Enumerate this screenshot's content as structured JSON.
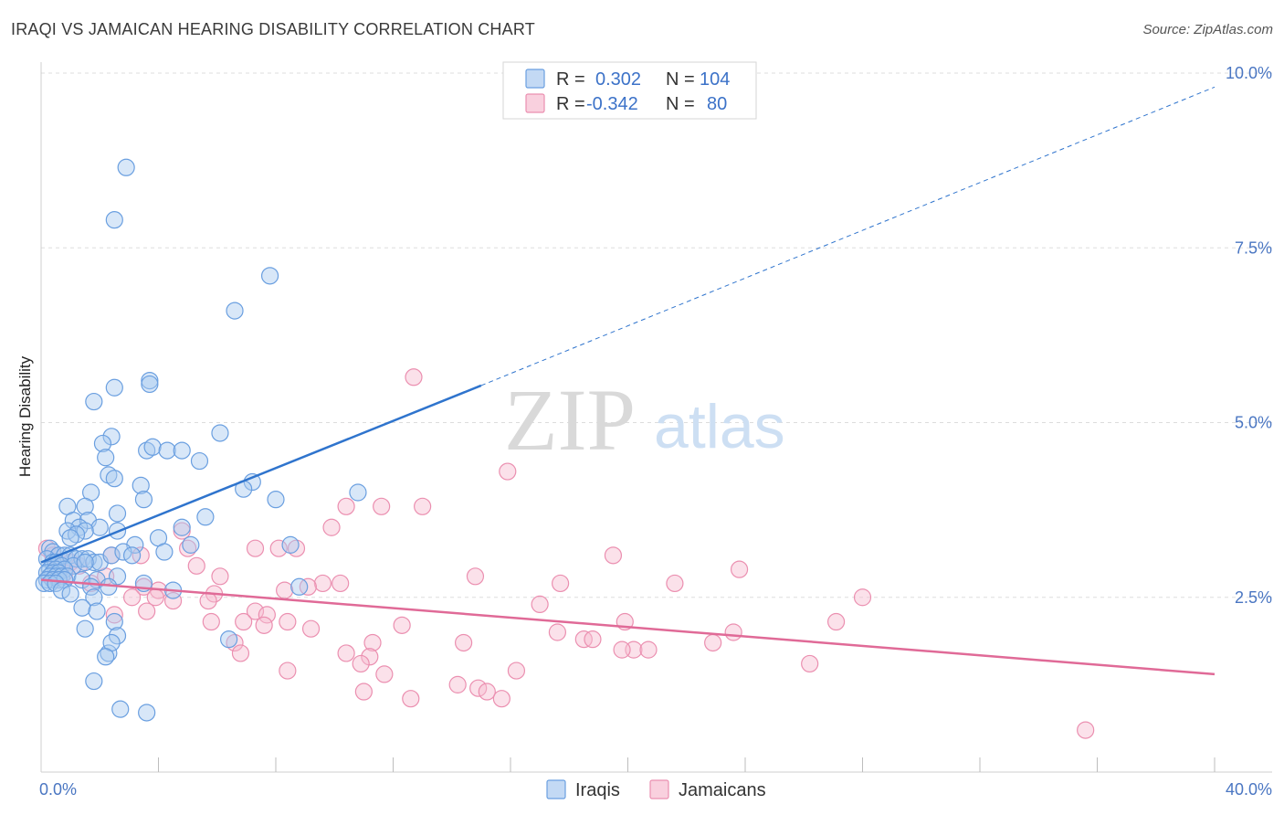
{
  "header": {
    "title": "IRAQI VS JAMAICAN HEARING DISABILITY CORRELATION CHART",
    "source": "Source: ZipAtlas.com"
  },
  "watermark": {
    "zip": "ZIP",
    "atlas": "atlas"
  },
  "legend": {
    "r_label": "R =",
    "n_label": "N =",
    "rows": [
      {
        "r": "0.302",
        "n": "104"
      },
      {
        "r": "-0.342",
        "n": "80"
      }
    ]
  },
  "bottom_legend": [
    "Iraqis",
    "Jamaicans"
  ],
  "colors": {
    "iraqis_fill": "#a9c9f0",
    "iraqis_stroke": "#6a9fe0",
    "iraqis_line": "#2f74cd",
    "jamaicans_fill": "#f7bcd0",
    "jamaicans_stroke": "#eb8fb0",
    "jamaicans_line": "#e06a97",
    "tick_text": "#4a76c2",
    "grid": "#dddddd"
  },
  "chart_data": {
    "type": "scatter",
    "title": "IRAQI VS JAMAICAN HEARING DISABILITY CORRELATION CHART",
    "xlabel": "",
    "ylabel": "Hearing Disability",
    "xlim": [
      0,
      40
    ],
    "ylim": [
      0,
      10
    ],
    "x_tick_labels": [
      "0.0%",
      "40.0%"
    ],
    "y_ticks": [
      2.5,
      5.0,
      7.5,
      10.0
    ],
    "y_tick_labels": [
      "2.5%",
      "5.0%",
      "7.5%",
      "10.0%"
    ],
    "grid": true,
    "legend_position": "top-center",
    "series": [
      {
        "name": "Iraqis",
        "r": 0.302,
        "n": 104,
        "trend": {
          "x": [
            0,
            15
          ],
          "y": [
            3.0,
            5.53
          ],
          "dashed_to": [
            40,
            9.8
          ]
        },
        "points": [
          [
            2.9,
            8.65
          ],
          [
            2.5,
            7.9
          ],
          [
            7.8,
            7.1
          ],
          [
            6.6,
            6.6
          ],
          [
            3.7,
            5.6
          ],
          [
            3.7,
            5.55
          ],
          [
            1.8,
            5.3
          ],
          [
            2.5,
            5.5
          ],
          [
            6.1,
            4.85
          ],
          [
            2.4,
            4.8
          ],
          [
            2.1,
            4.7
          ],
          [
            3.6,
            4.6
          ],
          [
            3.8,
            4.65
          ],
          [
            4.3,
            4.6
          ],
          [
            4.8,
            4.6
          ],
          [
            5.4,
            4.45
          ],
          [
            2.2,
            4.5
          ],
          [
            2.3,
            4.25
          ],
          [
            2.5,
            4.2
          ],
          [
            3.4,
            4.1
          ],
          [
            7.2,
            4.15
          ],
          [
            6.9,
            4.05
          ],
          [
            10.8,
            4.0
          ],
          [
            1.7,
            4.0
          ],
          [
            8.0,
            3.9
          ],
          [
            3.5,
            3.9
          ],
          [
            0.9,
            3.8
          ],
          [
            1.5,
            3.8
          ],
          [
            2.6,
            3.7
          ],
          [
            5.6,
            3.65
          ],
          [
            1.1,
            3.6
          ],
          [
            1.6,
            3.6
          ],
          [
            1.3,
            3.5
          ],
          [
            2.0,
            3.5
          ],
          [
            2.6,
            3.45
          ],
          [
            0.9,
            3.45
          ],
          [
            1.5,
            3.45
          ],
          [
            1.2,
            3.4
          ],
          [
            1.0,
            3.35
          ],
          [
            4.0,
            3.35
          ],
          [
            4.8,
            3.5
          ],
          [
            4.2,
            3.15
          ],
          [
            5.1,
            3.25
          ],
          [
            8.5,
            3.25
          ],
          [
            3.2,
            3.25
          ],
          [
            0.3,
            3.2
          ],
          [
            0.4,
            3.15
          ],
          [
            0.6,
            3.1
          ],
          [
            0.8,
            3.1
          ],
          [
            1.0,
            3.1
          ],
          [
            1.2,
            3.05
          ],
          [
            1.4,
            3.05
          ],
          [
            1.6,
            3.05
          ],
          [
            1.8,
            3.0
          ],
          [
            2.0,
            3.0
          ],
          [
            2.4,
            3.1
          ],
          [
            2.8,
            3.15
          ],
          [
            3.1,
            3.1
          ],
          [
            0.2,
            3.05
          ],
          [
            0.4,
            3.0
          ],
          [
            0.5,
            3.0
          ],
          [
            0.7,
            2.95
          ],
          [
            1.1,
            2.95
          ],
          [
            1.5,
            3.0
          ],
          [
            0.3,
            2.9
          ],
          [
            0.5,
            2.9
          ],
          [
            0.8,
            2.9
          ],
          [
            0.2,
            2.85
          ],
          [
            0.4,
            2.85
          ],
          [
            0.6,
            2.85
          ],
          [
            0.3,
            2.8
          ],
          [
            0.5,
            2.8
          ],
          [
            0.7,
            2.8
          ],
          [
            0.9,
            2.8
          ],
          [
            0.2,
            2.75
          ],
          [
            0.4,
            2.75
          ],
          [
            0.6,
            2.75
          ],
          [
            0.8,
            2.75
          ],
          [
            1.4,
            2.75
          ],
          [
            1.9,
            2.75
          ],
          [
            2.6,
            2.8
          ],
          [
            0.1,
            2.7
          ],
          [
            0.3,
            2.7
          ],
          [
            0.5,
            2.7
          ],
          [
            1.7,
            2.65
          ],
          [
            2.3,
            2.65
          ],
          [
            3.5,
            2.7
          ],
          [
            4.5,
            2.6
          ],
          [
            8.8,
            2.65
          ],
          [
            0.7,
            2.6
          ],
          [
            1.0,
            2.55
          ],
          [
            1.8,
            2.5
          ],
          [
            1.4,
            2.35
          ],
          [
            1.9,
            2.3
          ],
          [
            2.5,
            2.15
          ],
          [
            1.5,
            2.05
          ],
          [
            2.6,
            1.95
          ],
          [
            6.4,
            1.9
          ],
          [
            2.3,
            1.7
          ],
          [
            2.4,
            1.85
          ],
          [
            2.2,
            1.65
          ],
          [
            1.8,
            1.3
          ],
          [
            2.7,
            0.9
          ],
          [
            3.6,
            0.85
          ]
        ]
      },
      {
        "name": "Jamaicans",
        "r": -0.342,
        "n": 80,
        "trend": {
          "x": [
            0,
            40
          ],
          "y": [
            2.75,
            1.4
          ]
        },
        "points": [
          [
            12.7,
            5.65
          ],
          [
            15.9,
            4.3
          ],
          [
            10.4,
            3.8
          ],
          [
            11.6,
            3.8
          ],
          [
            13.0,
            3.8
          ],
          [
            9.9,
            3.5
          ],
          [
            4.8,
            3.45
          ],
          [
            5.0,
            3.2
          ],
          [
            7.3,
            3.2
          ],
          [
            8.1,
            3.2
          ],
          [
            8.7,
            3.2
          ],
          [
            19.5,
            3.1
          ],
          [
            3.4,
            3.1
          ],
          [
            2.4,
            3.1
          ],
          [
            23.8,
            2.9
          ],
          [
            5.3,
            2.95
          ],
          [
            0.2,
            3.2
          ],
          [
            0.4,
            3.1
          ],
          [
            0.6,
            3.0
          ],
          [
            1.0,
            3.0
          ],
          [
            1.3,
            2.95
          ],
          [
            0.5,
            2.9
          ],
          [
            0.8,
            2.85
          ],
          [
            2.2,
            2.8
          ],
          [
            1.7,
            2.7
          ],
          [
            6.1,
            2.8
          ],
          [
            14.8,
            2.8
          ],
          [
            9.6,
            2.7
          ],
          [
            10.2,
            2.7
          ],
          [
            17.7,
            2.7
          ],
          [
            21.6,
            2.7
          ],
          [
            3.5,
            2.65
          ],
          [
            4.0,
            2.6
          ],
          [
            5.9,
            2.55
          ],
          [
            8.3,
            2.6
          ],
          [
            9.1,
            2.65
          ],
          [
            28.0,
            2.5
          ],
          [
            17.0,
            2.4
          ],
          [
            3.1,
            2.5
          ],
          [
            3.9,
            2.5
          ],
          [
            4.5,
            2.45
          ],
          [
            5.7,
            2.45
          ],
          [
            2.5,
            2.25
          ],
          [
            3.6,
            2.3
          ],
          [
            7.3,
            2.3
          ],
          [
            7.7,
            2.25
          ],
          [
            5.8,
            2.15
          ],
          [
            6.9,
            2.15
          ],
          [
            8.4,
            2.15
          ],
          [
            12.3,
            2.1
          ],
          [
            19.9,
            2.15
          ],
          [
            27.1,
            2.15
          ],
          [
            7.6,
            2.1
          ],
          [
            9.2,
            2.05
          ],
          [
            17.6,
            2.0
          ],
          [
            23.6,
            2.0
          ],
          [
            6.6,
            1.85
          ],
          [
            11.3,
            1.85
          ],
          [
            14.4,
            1.85
          ],
          [
            18.5,
            1.9
          ],
          [
            18.8,
            1.9
          ],
          [
            20.2,
            1.75
          ],
          [
            22.9,
            1.85
          ],
          [
            10.4,
            1.7
          ],
          [
            11.2,
            1.65
          ],
          [
            6.8,
            1.7
          ],
          [
            10.9,
            1.55
          ],
          [
            8.4,
            1.45
          ],
          [
            16.2,
            1.45
          ],
          [
            26.2,
            1.55
          ],
          [
            11.7,
            1.4
          ],
          [
            14.2,
            1.25
          ],
          [
            14.9,
            1.2
          ],
          [
            15.2,
            1.15
          ],
          [
            11.0,
            1.15
          ],
          [
            12.6,
            1.05
          ],
          [
            15.7,
            1.05
          ],
          [
            19.8,
            1.75
          ],
          [
            20.7,
            1.75
          ],
          [
            35.6,
            0.6
          ]
        ]
      }
    ]
  }
}
